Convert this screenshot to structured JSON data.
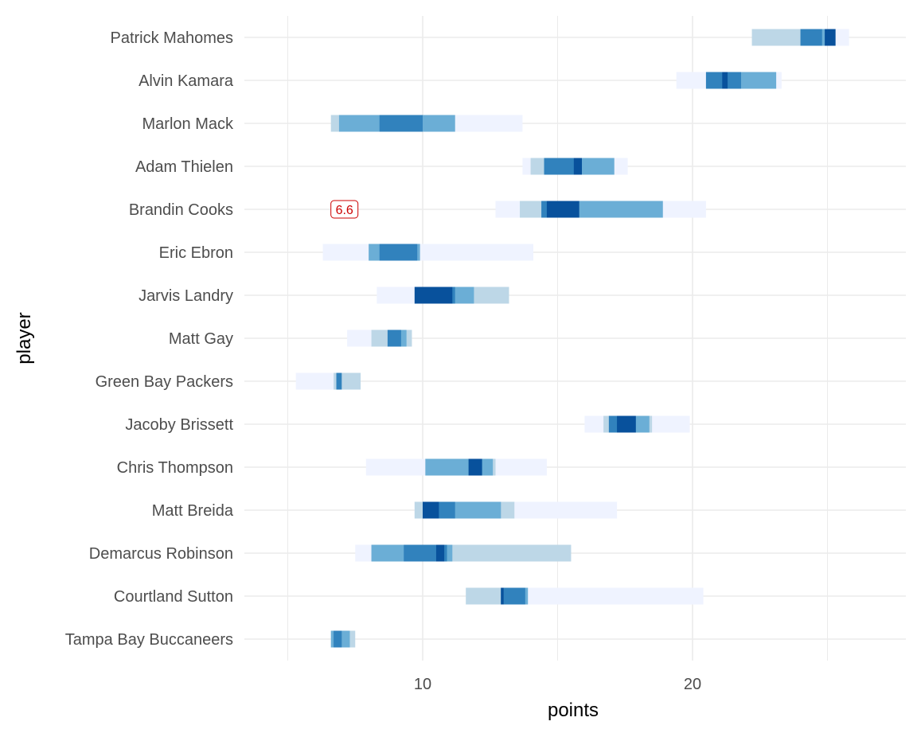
{
  "chart_data": {
    "type": "bar",
    "xlabel": "points",
    "ylabel": "player",
    "xlim": [
      4.5,
      28.5
    ],
    "x_ticks": [
      10,
      20
    ],
    "grid": true,
    "colors": {
      "lightest": "#eff3ff",
      "light": "#bdd7e7",
      "medium": "#6baed6",
      "dark": "#3182bd",
      "darkest": "#08519c",
      "annotation": "#cc0000",
      "grid": "#ebebeb"
    },
    "players": [
      {
        "name": "Patrick Mahomes",
        "segments": [
          [
            22.2,
            25.8,
            "lightest"
          ],
          [
            22.2,
            24.8,
            "light"
          ],
          [
            24.0,
            25.0,
            "medium"
          ],
          [
            24.0,
            24.8,
            "dark"
          ],
          [
            24.9,
            25.3,
            "darkest"
          ]
        ]
      },
      {
        "name": "Alvin Kamara",
        "segments": [
          [
            19.4,
            23.3,
            "lightest"
          ],
          [
            20.5,
            23.1,
            "light"
          ],
          [
            20.5,
            23.1,
            "medium"
          ],
          [
            20.5,
            21.8,
            "dark"
          ],
          [
            21.1,
            21.3,
            "darkest"
          ]
        ]
      },
      {
        "name": "Marlon Mack",
        "segments": [
          [
            6.6,
            13.7,
            "lightest"
          ],
          [
            6.6,
            11.2,
            "light"
          ],
          [
            6.9,
            11.2,
            "medium"
          ],
          [
            8.4,
            10.0,
            "dark"
          ]
        ]
      },
      {
        "name": "Adam Thielen",
        "segments": [
          [
            13.7,
            17.6,
            "lightest"
          ],
          [
            14.0,
            17.1,
            "light"
          ],
          [
            14.5,
            17.1,
            "medium"
          ],
          [
            14.5,
            15.9,
            "dark"
          ],
          [
            15.6,
            15.9,
            "darkest"
          ]
        ]
      },
      {
        "name": "Brandin Cooks",
        "segments": [
          [
            12.7,
            20.5,
            "lightest"
          ],
          [
            13.6,
            18.9,
            "light"
          ],
          [
            14.4,
            18.9,
            "medium"
          ],
          [
            14.4,
            15.8,
            "dark"
          ],
          [
            14.6,
            15.8,
            "darkest"
          ]
        ]
      },
      {
        "name": "Eric Ebron",
        "segments": [
          [
            6.3,
            14.1,
            "lightest"
          ],
          [
            8.0,
            9.9,
            "light"
          ],
          [
            8.0,
            9.9,
            "medium"
          ],
          [
            8.4,
            9.8,
            "dark"
          ]
        ]
      },
      {
        "name": "Jarvis Landry",
        "segments": [
          [
            8.3,
            13.2,
            "lightest"
          ],
          [
            9.9,
            13.2,
            "light"
          ],
          [
            9.9,
            11.9,
            "medium"
          ],
          [
            10.4,
            11.2,
            "dark"
          ],
          [
            9.7,
            11.1,
            "darkest"
          ]
        ]
      },
      {
        "name": "Matt Gay",
        "segments": [
          [
            7.2,
            9.6,
            "lightest"
          ],
          [
            8.1,
            9.6,
            "light"
          ],
          [
            8.7,
            9.4,
            "medium"
          ],
          [
            8.7,
            9.2,
            "dark"
          ]
        ]
      },
      {
        "name": "Green Bay Packers",
        "segments": [
          [
            5.3,
            7.7,
            "lightest"
          ],
          [
            6.7,
            7.7,
            "light"
          ],
          [
            6.8,
            7.0,
            "dark"
          ]
        ]
      },
      {
        "name": "Jacoby Brissett",
        "segments": [
          [
            16.0,
            19.9,
            "lightest"
          ],
          [
            16.7,
            18.5,
            "light"
          ],
          [
            16.9,
            18.4,
            "medium"
          ],
          [
            16.9,
            17.8,
            "dark"
          ],
          [
            17.2,
            17.9,
            "darkest"
          ]
        ]
      },
      {
        "name": "Chris Thompson",
        "segments": [
          [
            7.9,
            14.6,
            "lightest"
          ],
          [
            10.1,
            12.7,
            "light"
          ],
          [
            10.1,
            12.6,
            "medium"
          ],
          [
            11.8,
            12.2,
            "dark"
          ],
          [
            11.7,
            12.2,
            "darkest"
          ]
        ]
      },
      {
        "name": "Matt Breida",
        "segments": [
          [
            9.7,
            17.2,
            "lightest"
          ],
          [
            9.7,
            13.4,
            "light"
          ],
          [
            10.2,
            12.9,
            "medium"
          ],
          [
            10.2,
            11.2,
            "dark"
          ],
          [
            10.0,
            10.6,
            "darkest"
          ]
        ]
      },
      {
        "name": "Demarcus Robinson",
        "segments": [
          [
            7.5,
            15.5,
            "lightest"
          ],
          [
            8.1,
            15.5,
            "light"
          ],
          [
            8.1,
            11.1,
            "medium"
          ],
          [
            9.3,
            10.9,
            "dark"
          ],
          [
            10.5,
            10.8,
            "darkest"
          ]
        ]
      },
      {
        "name": "Courtland Sutton",
        "segments": [
          [
            11.6,
            20.4,
            "lightest"
          ],
          [
            11.6,
            13.8,
            "light"
          ],
          [
            12.9,
            13.9,
            "medium"
          ],
          [
            12.9,
            13.8,
            "dark"
          ],
          [
            12.9,
            13.0,
            "darkest"
          ]
        ]
      },
      {
        "name": "Tampa Bay Buccaneers",
        "segments": [
          [
            6.6,
            7.5,
            "light"
          ],
          [
            6.6,
            7.3,
            "medium"
          ],
          [
            6.7,
            7.0,
            "dark"
          ]
        ]
      }
    ],
    "annotations": [
      {
        "player": "Brandin Cooks",
        "x": 7.1,
        "label": "6.6"
      }
    ]
  }
}
